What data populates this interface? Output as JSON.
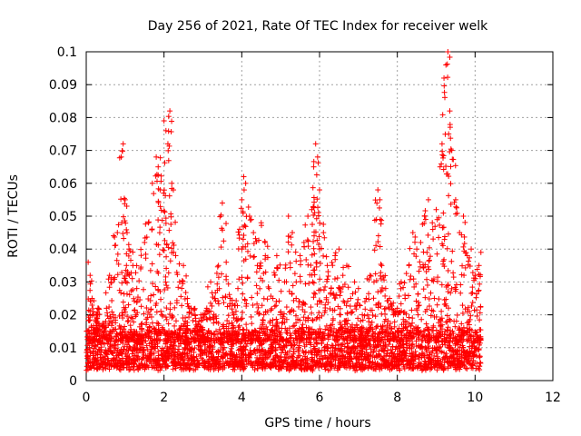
{
  "chart_data": {
    "type": "scatter",
    "title": "Day 256 of 2021, Rate Of TEC Index for receiver welk",
    "xlabel": "GPS time / hours",
    "ylabel": "ROTI / TECUs",
    "xlim": [
      0,
      12
    ],
    "ylim": [
      0,
      0.1
    ],
    "x_ticks": [
      "0",
      "2",
      "4",
      "6",
      "8",
      "10",
      "12"
    ],
    "y_ticks": [
      "0",
      "0.01",
      "0.02",
      "0.03",
      "0.04",
      "0.05",
      "0.06",
      "0.07",
      "0.08",
      "0.09",
      "0.1"
    ],
    "grid": true,
    "marker": "plus",
    "color": "#ff0000",
    "series": [
      {
        "x": [
          0.05,
          0.1,
          0.15,
          0.2,
          0.25,
          0.3,
          0.4,
          0.5,
          0.6,
          0.7,
          0.8,
          0.9,
          0.95,
          1.0,
          1.05,
          1.1,
          1.2,
          1.3,
          1.4,
          1.5,
          1.6,
          1.7,
          1.8,
          1.85,
          1.9,
          2.0,
          2.05,
          2.1,
          2.15,
          2.2,
          2.3,
          2.4,
          2.5,
          2.6,
          2.7,
          2.8,
          2.9,
          3.0,
          3.1,
          3.2,
          3.3,
          3.4,
          3.5,
          3.6,
          3.7,
          3.8,
          3.9,
          4.0,
          4.05,
          4.1,
          4.2,
          4.3,
          4.4,
          4.5,
          4.6,
          4.7,
          4.8,
          4.9,
          5.0,
          5.1,
          5.2,
          5.3,
          5.4,
          5.5,
          5.6,
          5.7,
          5.8,
          5.85,
          5.9,
          5.95,
          6.0,
          6.1,
          6.2,
          6.3,
          6.4,
          6.5,
          6.6,
          6.7,
          6.8,
          6.9,
          7.0,
          7.1,
          7.2,
          7.3,
          7.4,
          7.5,
          7.55,
          7.6,
          7.7,
          7.8,
          7.9,
          8.0,
          8.1,
          8.2,
          8.3,
          8.4,
          8.5,
          8.6,
          8.7,
          8.8,
          8.9,
          9.0,
          9.1,
          9.15,
          9.2,
          9.25,
          9.3,
          9.35,
          9.4,
          9.5,
          9.6,
          9.7,
          9.8,
          9.9,
          10.0,
          10.1,
          10.15
        ],
        "y": [
          0.036,
          0.032,
          0.025,
          0.02,
          0.018,
          0.022,
          0.015,
          0.018,
          0.032,
          0.02,
          0.045,
          0.068,
          0.072,
          0.055,
          0.045,
          0.04,
          0.035,
          0.028,
          0.034,
          0.042,
          0.048,
          0.06,
          0.068,
          0.065,
          0.058,
          0.079,
          0.076,
          0.072,
          0.082,
          0.06,
          0.038,
          0.03,
          0.035,
          0.025,
          0.022,
          0.02,
          0.018,
          0.02,
          0.022,
          0.03,
          0.025,
          0.035,
          0.054,
          0.036,
          0.025,
          0.02,
          0.028,
          0.055,
          0.062,
          0.06,
          0.05,
          0.045,
          0.035,
          0.048,
          0.042,
          0.028,
          0.025,
          0.038,
          0.02,
          0.03,
          0.05,
          0.045,
          0.03,
          0.038,
          0.042,
          0.05,
          0.052,
          0.065,
          0.072,
          0.068,
          0.058,
          0.045,
          0.035,
          0.028,
          0.038,
          0.04,
          0.032,
          0.035,
          0.025,
          0.03,
          0.028,
          0.02,
          0.025,
          0.032,
          0.03,
          0.058,
          0.055,
          0.035,
          0.028,
          0.025,
          0.02,
          0.022,
          0.03,
          0.025,
          0.035,
          0.045,
          0.04,
          0.042,
          0.05,
          0.055,
          0.048,
          0.052,
          0.065,
          0.072,
          0.092,
          0.096,
          0.1,
          0.082,
          0.07,
          0.055,
          0.045,
          0.05,
          0.038,
          0.04,
          0.032,
          0.035,
          0.039
        ]
      }
    ],
    "background_band": {
      "x_range": [
        0.0,
        10.15
      ],
      "y_range": [
        0.003,
        0.015
      ]
    }
  }
}
